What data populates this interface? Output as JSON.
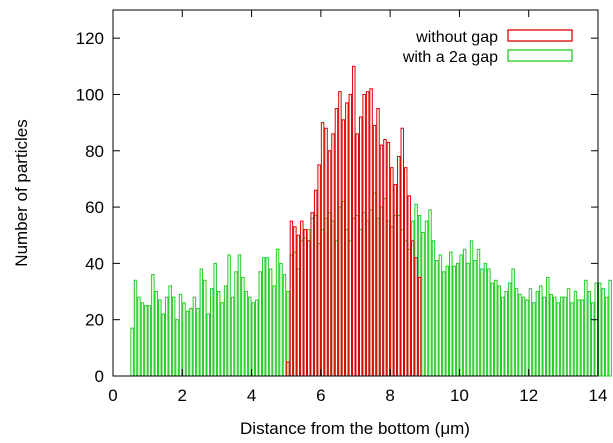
{
  "chart_data": {
    "type": "bar",
    "xlabel": "Distance from the bottom (μm)",
    "ylabel": "Number of particles",
    "xlim": [
      0,
      14
    ],
    "ylim": [
      0,
      130
    ],
    "xticks": [
      0,
      2,
      4,
      6,
      8,
      10,
      12,
      14
    ],
    "yticks": [
      0,
      20,
      40,
      60,
      80,
      100,
      120
    ],
    "grid": false,
    "legend_position": "top-right",
    "bin_width": 0.1,
    "series": [
      {
        "name": "without gap",
        "color": "#dd0000",
        "x_start": 5.0,
        "values": [
          5,
          55,
          53,
          50,
          55,
          52,
          48,
          58,
          66,
          75,
          90,
          88,
          80,
          86,
          95,
          101,
          91,
          97,
          100,
          110,
          86,
          92,
          100,
          101,
          102,
          89,
          95,
          82,
          84,
          83,
          74,
          68,
          78,
          88,
          74,
          64,
          48,
          42,
          35
        ]
      },
      {
        "name": "with a 2a gap",
        "color": "#22cc22",
        "x_start": 0.5,
        "values": [
          17,
          34,
          28,
          26,
          25,
          25,
          36,
          30,
          27,
          22,
          28,
          32,
          28,
          20,
          29,
          26,
          23,
          24,
          28,
          24,
          38,
          34,
          22,
          31,
          40,
          30,
          26,
          32,
          43,
          28,
          37,
          43,
          35,
          30,
          28,
          26,
          27,
          37,
          42,
          42,
          38,
          32,
          45,
          40,
          36,
          30,
          43,
          44,
          38,
          48,
          49,
          52,
          56,
          57,
          47,
          52,
          56,
          58,
          55,
          48,
          60,
          62,
          52,
          48,
          56,
          57,
          52,
          58,
          55,
          59,
          65,
          56,
          60,
          63,
          55,
          53,
          57,
          57,
          52,
          48,
          45,
          55,
          61,
          57,
          51,
          55,
          59,
          48,
          41,
          43,
          37,
          39,
          44,
          39,
          40,
          43,
          45,
          40,
          48,
          41,
          45,
          38,
          40,
          38,
          33,
          34,
          32,
          28,
          30,
          33,
          38,
          31,
          29,
          28,
          27,
          31,
          26,
          30,
          32,
          28,
          35,
          29,
          28,
          26,
          28,
          28,
          31,
          26,
          30,
          27,
          27,
          34,
          30,
          26,
          33,
          33,
          31,
          28,
          34
        ]
      }
    ]
  }
}
